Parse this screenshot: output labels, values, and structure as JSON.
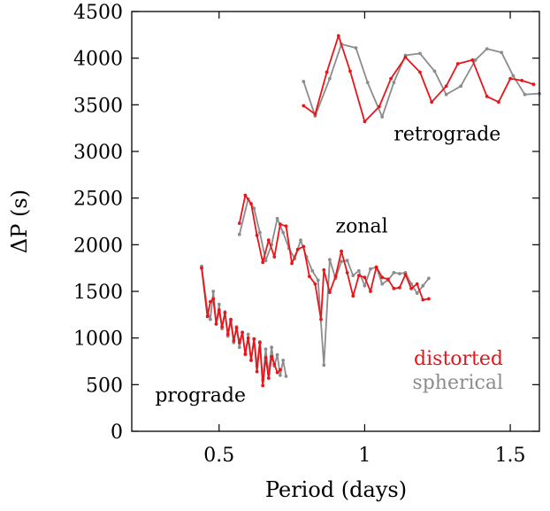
{
  "chart_data": {
    "type": "line",
    "xlabel": "Period (days)",
    "ylabel": "ΔP (s)",
    "xlim": [
      0.2,
      1.6
    ],
    "ylim": [
      0,
      4500
    ],
    "x_ticks": [
      0.5,
      1,
      1.5
    ],
    "y_ticks": [
      0,
      500,
      1000,
      1500,
      2000,
      2500,
      3000,
      3500,
      4000,
      4500
    ],
    "grid": false,
    "legend_position": "right",
    "legend": [
      {
        "label": "distorted",
        "color": "#e8151b"
      },
      {
        "label": "spherical",
        "color": "#8c8c8c"
      }
    ],
    "annotations": [
      {
        "text": "retrograde",
        "x": 1.1,
        "y": 3120
      },
      {
        "text": "zonal",
        "x": 0.9,
        "y": 2130
      },
      {
        "text": "prograde",
        "x": 0.28,
        "y": 320
      }
    ],
    "series": [
      {
        "name": "distorted",
        "color": "#e8151b",
        "group": "retrograde",
        "x": [
          0.79,
          0.83,
          0.87,
          0.91,
          0.95,
          1.0,
          1.05,
          1.09,
          1.14,
          1.19,
          1.23,
          1.28,
          1.32,
          1.37,
          1.42,
          1.46,
          1.5,
          1.54,
          1.58
        ],
        "y": [
          3490,
          3400,
          3850,
          4240,
          3860,
          3320,
          3480,
          3780,
          4010,
          3850,
          3530,
          3700,
          3940,
          3980,
          3590,
          3530,
          3780,
          3760,
          3720
        ]
      },
      {
        "name": "spherical",
        "color": "#8c8c8c",
        "group": "retrograde",
        "x": [
          0.79,
          0.83,
          0.88,
          0.92,
          0.97,
          1.01,
          1.06,
          1.1,
          1.14,
          1.19,
          1.24,
          1.28,
          1.33,
          1.38,
          1.42,
          1.47,
          1.51,
          1.55,
          1.6
        ],
        "y": [
          3750,
          3380,
          3780,
          4150,
          4110,
          3740,
          3370,
          3740,
          4030,
          4050,
          3860,
          3610,
          3700,
          3980,
          4100,
          4060,
          3810,
          3610,
          3620
        ]
      },
      {
        "name": "distorted",
        "color": "#e8151b",
        "group": "zonal",
        "x": [
          0.57,
          0.59,
          0.61,
          0.63,
          0.65,
          0.67,
          0.69,
          0.71,
          0.73,
          0.75,
          0.77,
          0.79,
          0.81,
          0.83,
          0.85,
          0.86,
          0.88,
          0.9,
          0.92,
          0.94,
          0.96,
          0.98,
          1.0,
          1.02,
          1.04,
          1.06,
          1.08,
          1.1,
          1.12,
          1.14,
          1.16,
          1.18,
          1.2,
          1.22
        ],
        "y": [
          2230,
          2530,
          2440,
          2100,
          1810,
          2050,
          1870,
          2220,
          2200,
          1800,
          1950,
          1980,
          1660,
          1580,
          1200,
          1730,
          1490,
          1660,
          1930,
          1700,
          1450,
          1670,
          1650,
          1500,
          1760,
          1650,
          1630,
          1530,
          1540,
          1680,
          1530,
          1580,
          1410,
          1420
        ]
      },
      {
        "name": "spherical",
        "color": "#8c8c8c",
        "group": "zonal",
        "x": [
          0.57,
          0.6,
          0.62,
          0.64,
          0.66,
          0.68,
          0.7,
          0.72,
          0.74,
          0.76,
          0.78,
          0.8,
          0.82,
          0.84,
          0.86,
          0.88,
          0.9,
          0.92,
          0.94,
          0.96,
          0.98,
          1.0,
          1.02,
          1.04,
          1.06,
          1.08,
          1.1,
          1.12,
          1.14,
          1.16,
          1.18,
          1.2,
          1.22
        ],
        "y": [
          2110,
          2490,
          2390,
          2130,
          1830,
          2000,
          2280,
          2130,
          1960,
          1850,
          2050,
          1870,
          1720,
          1620,
          710,
          1840,
          1640,
          1820,
          1830,
          1670,
          1720,
          1560,
          1740,
          1760,
          1580,
          1620,
          1700,
          1690,
          1700,
          1580,
          1480,
          1560,
          1640
        ]
      },
      {
        "name": "distorted",
        "color": "#e8151b",
        "group": "prograde",
        "x": [
          0.44,
          0.46,
          0.47,
          0.48,
          0.49,
          0.5,
          0.51,
          0.52,
          0.53,
          0.54,
          0.55,
          0.56,
          0.57,
          0.58,
          0.59,
          0.6,
          0.61,
          0.62,
          0.63,
          0.64,
          0.65,
          0.66,
          0.67,
          0.68,
          0.69,
          0.7,
          0.71
        ],
        "y": [
          1750,
          1230,
          1390,
          1420,
          1150,
          1300,
          1120,
          1270,
          1040,
          1200,
          970,
          1110,
          950,
          1060,
          830,
          1000,
          760,
          990,
          640,
          950,
          490,
          790,
          570,
          800,
          720,
          630,
          660
        ]
      },
      {
        "name": "spherical",
        "color": "#8c8c8c",
        "group": "prograde",
        "x": [
          0.44,
          0.46,
          0.47,
          0.48,
          0.49,
          0.5,
          0.51,
          0.52,
          0.53,
          0.54,
          0.55,
          0.56,
          0.57,
          0.58,
          0.59,
          0.6,
          0.61,
          0.62,
          0.63,
          0.64,
          0.65,
          0.66,
          0.67,
          0.68,
          0.69,
          0.7,
          0.71,
          0.72,
          0.73
        ],
        "y": [
          1770,
          1300,
          1200,
          1500,
          1150,
          1360,
          1100,
          1280,
          1020,
          1180,
          950,
          1120,
          900,
          1060,
          820,
          1040,
          760,
          990,
          700,
          960,
          550,
          880,
          620,
          900,
          700,
          820,
          600,
          760,
          590
        ]
      }
    ]
  }
}
